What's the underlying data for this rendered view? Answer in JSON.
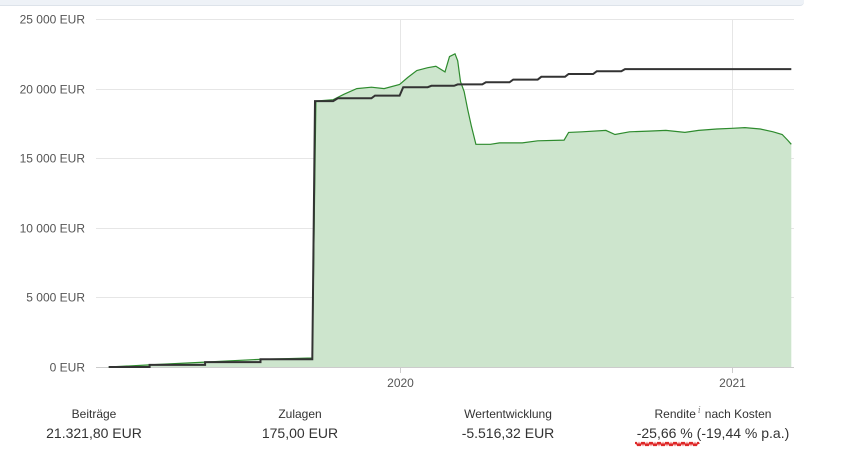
{
  "chart_data": {
    "type": "area",
    "ylim": [
      0,
      25000
    ],
    "yticks": [
      0,
      5000,
      10000,
      15000,
      20000,
      25000
    ],
    "ytick_labels": [
      "0 EUR",
      "5 000 EUR",
      "10 000 EUR",
      "15 000 EUR",
      "20 000 EUR",
      "25 000 EUR"
    ],
    "xlim": [
      "2019-02-01",
      "2021-03-10"
    ],
    "xticks": [
      "2020-01-01",
      "2021-01-01"
    ],
    "xtick_labels": [
      "2020",
      "2021"
    ],
    "grid": true,
    "colors": {
      "value_line": "#2e8b2e",
      "value_fill": "#cde5cd",
      "contributions_line": "#333333"
    },
    "series": [
      {
        "key": "value",
        "points": [
          [
            "2019-02-15",
            0
          ],
          [
            "2019-04-01",
            150
          ],
          [
            "2019-06-01",
            350
          ],
          [
            "2019-08-01",
            550
          ],
          [
            "2019-09-27",
            650
          ],
          [
            "2019-10-01",
            19100
          ],
          [
            "2019-10-20",
            19200
          ],
          [
            "2019-11-01",
            19600
          ],
          [
            "2019-11-15",
            20000
          ],
          [
            "2019-12-01",
            20100
          ],
          [
            "2019-12-15",
            20000
          ],
          [
            "2020-01-01",
            20300
          ],
          [
            "2020-01-10",
            20800
          ],
          [
            "2020-01-20",
            21300
          ],
          [
            "2020-02-01",
            21500
          ],
          [
            "2020-02-10",
            21600
          ],
          [
            "2020-02-20",
            21200
          ],
          [
            "2020-02-25",
            22300
          ],
          [
            "2020-03-02",
            22500
          ],
          [
            "2020-03-05",
            22000
          ],
          [
            "2020-03-08",
            20500
          ],
          [
            "2020-03-12",
            19800
          ],
          [
            "2020-03-16",
            18500
          ],
          [
            "2020-03-20",
            17300
          ],
          [
            "2020-03-25",
            16000
          ],
          [
            "2020-04-10",
            16000
          ],
          [
            "2020-04-20",
            16100
          ],
          [
            "2020-05-15",
            16100
          ],
          [
            "2020-06-01",
            16250
          ],
          [
            "2020-06-30",
            16300
          ],
          [
            "2020-07-05",
            16850
          ],
          [
            "2020-07-20",
            16900
          ],
          [
            "2020-08-15",
            17000
          ],
          [
            "2020-08-25",
            16700
          ],
          [
            "2020-09-10",
            16900
          ],
          [
            "2020-10-01",
            16950
          ],
          [
            "2020-10-20",
            17000
          ],
          [
            "2020-11-10",
            16850
          ],
          [
            "2020-11-25",
            17000
          ],
          [
            "2020-12-15",
            17100
          ],
          [
            "2021-01-01",
            17150
          ],
          [
            "2021-01-15",
            17200
          ],
          [
            "2021-02-01",
            17100
          ],
          [
            "2021-02-15",
            16900
          ],
          [
            "2021-02-25",
            16700
          ],
          [
            "2021-03-03",
            16300
          ],
          [
            "2021-03-07",
            16000
          ]
        ]
      },
      {
        "key": "contributions",
        "points": [
          [
            "2019-02-15",
            0
          ],
          [
            "2019-04-01",
            0
          ],
          [
            "2019-04-01",
            150
          ],
          [
            "2019-06-01",
            150
          ],
          [
            "2019-06-01",
            350
          ],
          [
            "2019-08-01",
            350
          ],
          [
            "2019-08-01",
            550
          ],
          [
            "2019-09-27",
            550
          ],
          [
            "2019-09-30",
            19100
          ],
          [
            "2019-10-20",
            19100
          ],
          [
            "2019-10-25",
            19300
          ],
          [
            "2019-12-01",
            19300
          ],
          [
            "2019-12-05",
            19500
          ],
          [
            "2020-01-01",
            19500
          ],
          [
            "2020-01-05",
            20100
          ],
          [
            "2020-02-01",
            20100
          ],
          [
            "2020-02-05",
            20200
          ],
          [
            "2020-03-01",
            20200
          ],
          [
            "2020-03-05",
            20300
          ],
          [
            "2020-04-01",
            20300
          ],
          [
            "2020-04-05",
            20450
          ],
          [
            "2020-05-01",
            20450
          ],
          [
            "2020-05-05",
            20650
          ],
          [
            "2020-06-01",
            20650
          ],
          [
            "2020-06-05",
            20850
          ],
          [
            "2020-07-01",
            20850
          ],
          [
            "2020-07-05",
            21050
          ],
          [
            "2020-08-01",
            21050
          ],
          [
            "2020-08-05",
            21250
          ],
          [
            "2020-09-01",
            21250
          ],
          [
            "2020-09-05",
            21400
          ],
          [
            "2021-03-07",
            21400
          ]
        ]
      }
    ]
  },
  "stats": {
    "contributions": {
      "label": "Beiträge",
      "value": "21.321,80 EUR"
    },
    "allowances": {
      "label": "Zulagen",
      "value": "175,00 EUR"
    },
    "value_change": {
      "label": "Wertentwicklung",
      "value": "-5.516,32 EUR"
    },
    "return": {
      "label_pre": "Rendite",
      "info_glyph": "i",
      "label_post": "nach Kosten",
      "value_main": "-25,66 %",
      "value_pa": "(-19,44 % p.a.)",
      "underline_color": "#dd2222"
    }
  }
}
